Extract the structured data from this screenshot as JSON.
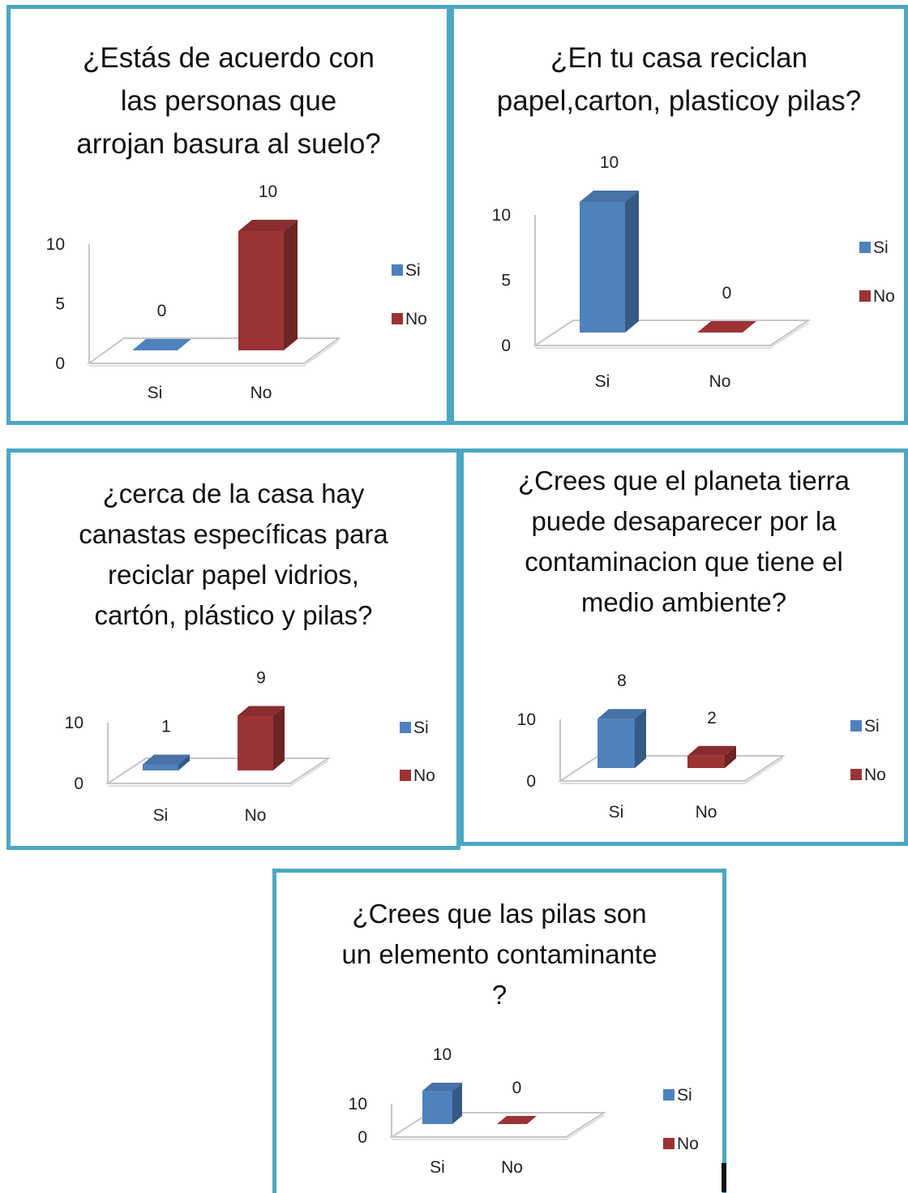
{
  "colors": {
    "border": "#4aa8c3",
    "si": "#4f81bd",
    "no": "#9b3335"
  },
  "chart_data": [
    {
      "type": "bar",
      "title": "¿Estás de acuerdo con las personas que arrojan basura al suelo?",
      "categories": [
        "Si",
        "No"
      ],
      "series": [
        {
          "name": "Si",
          "values": [
            0,
            null
          ]
        },
        {
          "name": "No",
          "values": [
            null,
            10
          ]
        }
      ],
      "ylim": [
        0,
        10
      ],
      "yticks": [
        "0",
        "5",
        "10"
      ],
      "data_labels": [
        "0",
        "10"
      ],
      "legend": [
        "Si",
        "No"
      ],
      "legend_position": "right",
      "grid": false
    },
    {
      "type": "bar",
      "title": "¿En tu casa reciclan papel,carton, plasticoy pilas?",
      "categories": [
        "Si",
        "No"
      ],
      "series": [
        {
          "name": "Si",
          "values": [
            10,
            null
          ]
        },
        {
          "name": "No",
          "values": [
            null,
            0
          ]
        }
      ],
      "ylim": [
        0,
        10
      ],
      "yticks": [
        "0",
        "5",
        "10"
      ],
      "data_labels": [
        "10",
        "0"
      ],
      "legend": [
        "Si",
        "No"
      ],
      "legend_position": "right",
      "grid": false
    },
    {
      "type": "bar",
      "title": "¿cerca de la casa hay canastas específicas para reciclar papel vidrios, cartón, plástico y pilas?",
      "categories": [
        "Si",
        "No"
      ],
      "series": [
        {
          "name": "Si",
          "values": [
            1,
            null
          ]
        },
        {
          "name": "No",
          "values": [
            null,
            9
          ]
        }
      ],
      "ylim": [
        0,
        10
      ],
      "yticks": [
        "0",
        "10"
      ],
      "data_labels": [
        "1",
        "9"
      ],
      "legend": [
        "Si",
        "No"
      ],
      "legend_position": "right",
      "grid": false
    },
    {
      "type": "bar",
      "title": "¿Crees que el planeta tierra puede desaparecer por la contaminacion que tiene el medio ambiente?",
      "categories": [
        "Si",
        "No"
      ],
      "series": [
        {
          "name": "Si",
          "values": [
            8,
            null
          ]
        },
        {
          "name": "No",
          "values": [
            null,
            2
          ]
        }
      ],
      "ylim": [
        0,
        10
      ],
      "yticks": [
        "0",
        "10"
      ],
      "data_labels": [
        "8",
        "2"
      ],
      "legend": [
        "Si",
        "No"
      ],
      "legend_position": "right",
      "grid": false
    },
    {
      "type": "bar",
      "title": "¿Crees que las pilas son un elemento contaminante ?",
      "categories": [
        "Si",
        "No"
      ],
      "series": [
        {
          "name": "Si",
          "values": [
            10,
            null
          ]
        },
        {
          "name": "No",
          "values": [
            null,
            0
          ]
        }
      ],
      "ylim": [
        0,
        10
      ],
      "yticks": [
        "0",
        "10"
      ],
      "data_labels": [
        "10",
        "0"
      ],
      "legend": [
        "Si",
        "No"
      ],
      "legend_position": "right",
      "grid": false
    }
  ]
}
